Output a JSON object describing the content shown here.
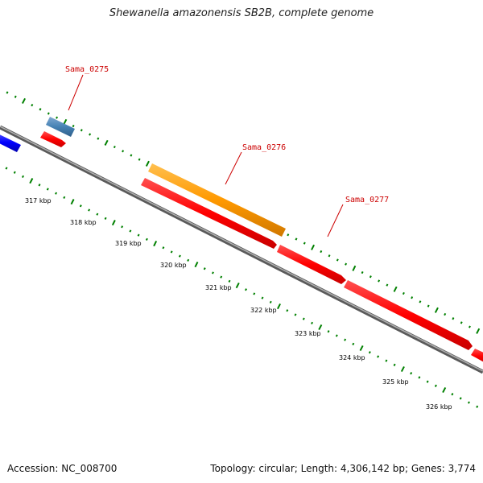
{
  "title": "Shewanella amazonensis SB2B, complete genome",
  "footer": {
    "accession": "Accession: NC_008700",
    "summary": "Topology: circular; Length: 4,306,142 bp; Genes: 3,774"
  },
  "colors": {
    "forward_cds": "#ff0000",
    "blue_feature": "#0000ff",
    "steel_feature": "#4682b4",
    "orange_feature": "#ff9900",
    "backbone": "#808080",
    "ticks": "#008000",
    "label": "#cc0000"
  },
  "gene_labels": [
    {
      "name": "Sama_0275"
    },
    {
      "name": "Sama_0276"
    },
    {
      "name": "Sama_0277"
    }
  ],
  "scale_labels": [
    "317 kbp",
    "318 kbp",
    "319 kbp",
    "320 kbp",
    "321 kbp",
    "322 kbp",
    "323 kbp",
    "324 kbp",
    "325 kbp",
    "326 kbp"
  ]
}
